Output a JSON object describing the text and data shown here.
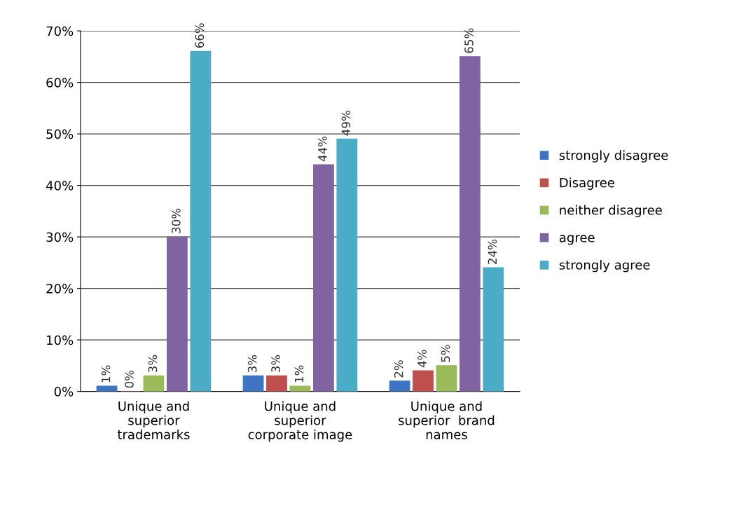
{
  "chart_data": {
    "type": "bar",
    "categories": [
      "Unique and\nsuperior\ntrademarks",
      "Unique and\nsuperior\ncorporate image",
      "Unique and\nsuperior  brand\nnames"
    ],
    "series": [
      {
        "name": "strongly disagree",
        "color": "#3f74c4",
        "values": [
          1,
          3,
          2
        ],
        "value_labels": [
          "1%",
          "3%",
          "2%"
        ]
      },
      {
        "name": "Disagree",
        "color": "#c0504d",
        "values": [
          0,
          3,
          4
        ],
        "value_labels": [
          "0%",
          "3%",
          "4%"
        ]
      },
      {
        "name": "neither disagree",
        "color": "#9bbb59",
        "values": [
          3,
          1,
          5
        ],
        "value_labels": [
          "3%",
          "1%",
          "5%"
        ]
      },
      {
        "name": "agree",
        "color": "#8064a2",
        "values": [
          30,
          44,
          65
        ],
        "value_labels": [
          "30%",
          "44%",
          "65%"
        ]
      },
      {
        "name": "strongly agree",
        "color": "#4bacc6",
        "values": [
          66,
          49,
          24
        ],
        "value_labels": [
          "66%",
          "49%",
          "24%"
        ]
      }
    ],
    "ylim": [
      0,
      70
    ],
    "yticks": [
      {
        "value": 0,
        "label": "0%"
      },
      {
        "value": 10,
        "label": "10%"
      },
      {
        "value": 20,
        "label": "20%"
      },
      {
        "value": 30,
        "label": "30%"
      },
      {
        "value": 40,
        "label": "40%"
      },
      {
        "value": 50,
        "label": "50%"
      },
      {
        "value": 60,
        "label": "60%"
      },
      {
        "value": 70,
        "label": "70%"
      }
    ],
    "grid": "y",
    "legend": "right"
  }
}
